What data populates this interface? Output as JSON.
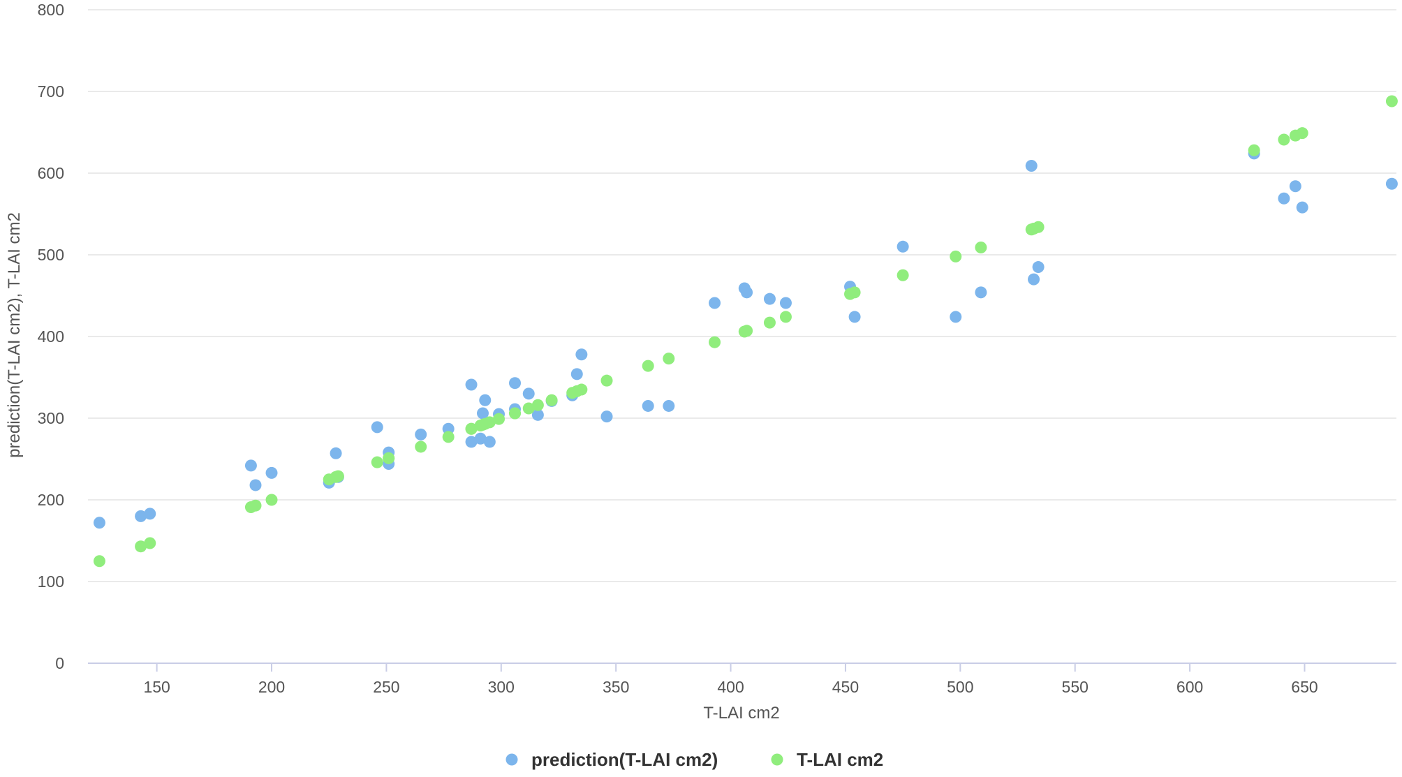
{
  "chart_data": {
    "type": "scatter",
    "title": "",
    "xlabel": "T-LAI cm2",
    "ylabel": "prediction(T-LAI cm2), T-LAI cm2",
    "xlim": [
      120,
      690
    ],
    "ylim": [
      0,
      800
    ],
    "xticks": [
      150,
      200,
      250,
      300,
      350,
      400,
      450,
      500,
      550,
      600,
      650
    ],
    "yticks": [
      0,
      100,
      200,
      300,
      400,
      500,
      600,
      700,
      800
    ],
    "grid": "horizontal",
    "legend": "bottom-center",
    "series": [
      {
        "name": "prediction(T-LAI cm2)",
        "color": "#7cb5ec",
        "points": [
          [
            125,
            172
          ],
          [
            143,
            180
          ],
          [
            147,
            183
          ],
          [
            191,
            242
          ],
          [
            193,
            218
          ],
          [
            200,
            233
          ],
          [
            225,
            221
          ],
          [
            228,
            257
          ],
          [
            229,
            228
          ],
          [
            246,
            289
          ],
          [
            251,
            258
          ],
          [
            251,
            244
          ],
          [
            265,
            280
          ],
          [
            277,
            287
          ],
          [
            287,
            341
          ],
          [
            287,
            271
          ],
          [
            291,
            275
          ],
          [
            292,
            306
          ],
          [
            293,
            322
          ],
          [
            295,
            271
          ],
          [
            299,
            305
          ],
          [
            306,
            343
          ],
          [
            306,
            311
          ],
          [
            312,
            330
          ],
          [
            316,
            304
          ],
          [
            322,
            321
          ],
          [
            331,
            328
          ],
          [
            333,
            354
          ],
          [
            335,
            378
          ],
          [
            346,
            302
          ],
          [
            364,
            315
          ],
          [
            373,
            315
          ],
          [
            393,
            441
          ],
          [
            406,
            459
          ],
          [
            407,
            454
          ],
          [
            417,
            446
          ],
          [
            424,
            441
          ],
          [
            452,
            461
          ],
          [
            454,
            424
          ],
          [
            475,
            510
          ],
          [
            498,
            424
          ],
          [
            509,
            454
          ],
          [
            531,
            609
          ],
          [
            532,
            470
          ],
          [
            534,
            485
          ],
          [
            628,
            624
          ],
          [
            641,
            569
          ],
          [
            646,
            584
          ],
          [
            649,
            558
          ],
          [
            688,
            587
          ]
        ]
      },
      {
        "name": "T-LAI cm2",
        "color": "#90ed7d",
        "points": [
          [
            125,
            125
          ],
          [
            143,
            143
          ],
          [
            147,
            147
          ],
          [
            191,
            191
          ],
          [
            193,
            193
          ],
          [
            200,
            200
          ],
          [
            225,
            225
          ],
          [
            228,
            228
          ],
          [
            229,
            229
          ],
          [
            246,
            246
          ],
          [
            251,
            251
          ],
          [
            251,
            251
          ],
          [
            265,
            265
          ],
          [
            277,
            277
          ],
          [
            287,
            287
          ],
          [
            287,
            287
          ],
          [
            291,
            291
          ],
          [
            292,
            292
          ],
          [
            293,
            293
          ],
          [
            295,
            295
          ],
          [
            299,
            299
          ],
          [
            306,
            306
          ],
          [
            306,
            306
          ],
          [
            312,
            312
          ],
          [
            316,
            316
          ],
          [
            322,
            322
          ],
          [
            331,
            331
          ],
          [
            333,
            333
          ],
          [
            335,
            335
          ],
          [
            346,
            346
          ],
          [
            364,
            364
          ],
          [
            373,
            373
          ],
          [
            393,
            393
          ],
          [
            406,
            406
          ],
          [
            407,
            407
          ],
          [
            417,
            417
          ],
          [
            424,
            424
          ],
          [
            452,
            452
          ],
          [
            454,
            454
          ],
          [
            475,
            475
          ],
          [
            498,
            498
          ],
          [
            509,
            509
          ],
          [
            531,
            531
          ],
          [
            532,
            532
          ],
          [
            534,
            534
          ],
          [
            628,
            628
          ],
          [
            641,
            641
          ],
          [
            646,
            646
          ],
          [
            649,
            649
          ],
          [
            688,
            688
          ]
        ]
      }
    ]
  }
}
